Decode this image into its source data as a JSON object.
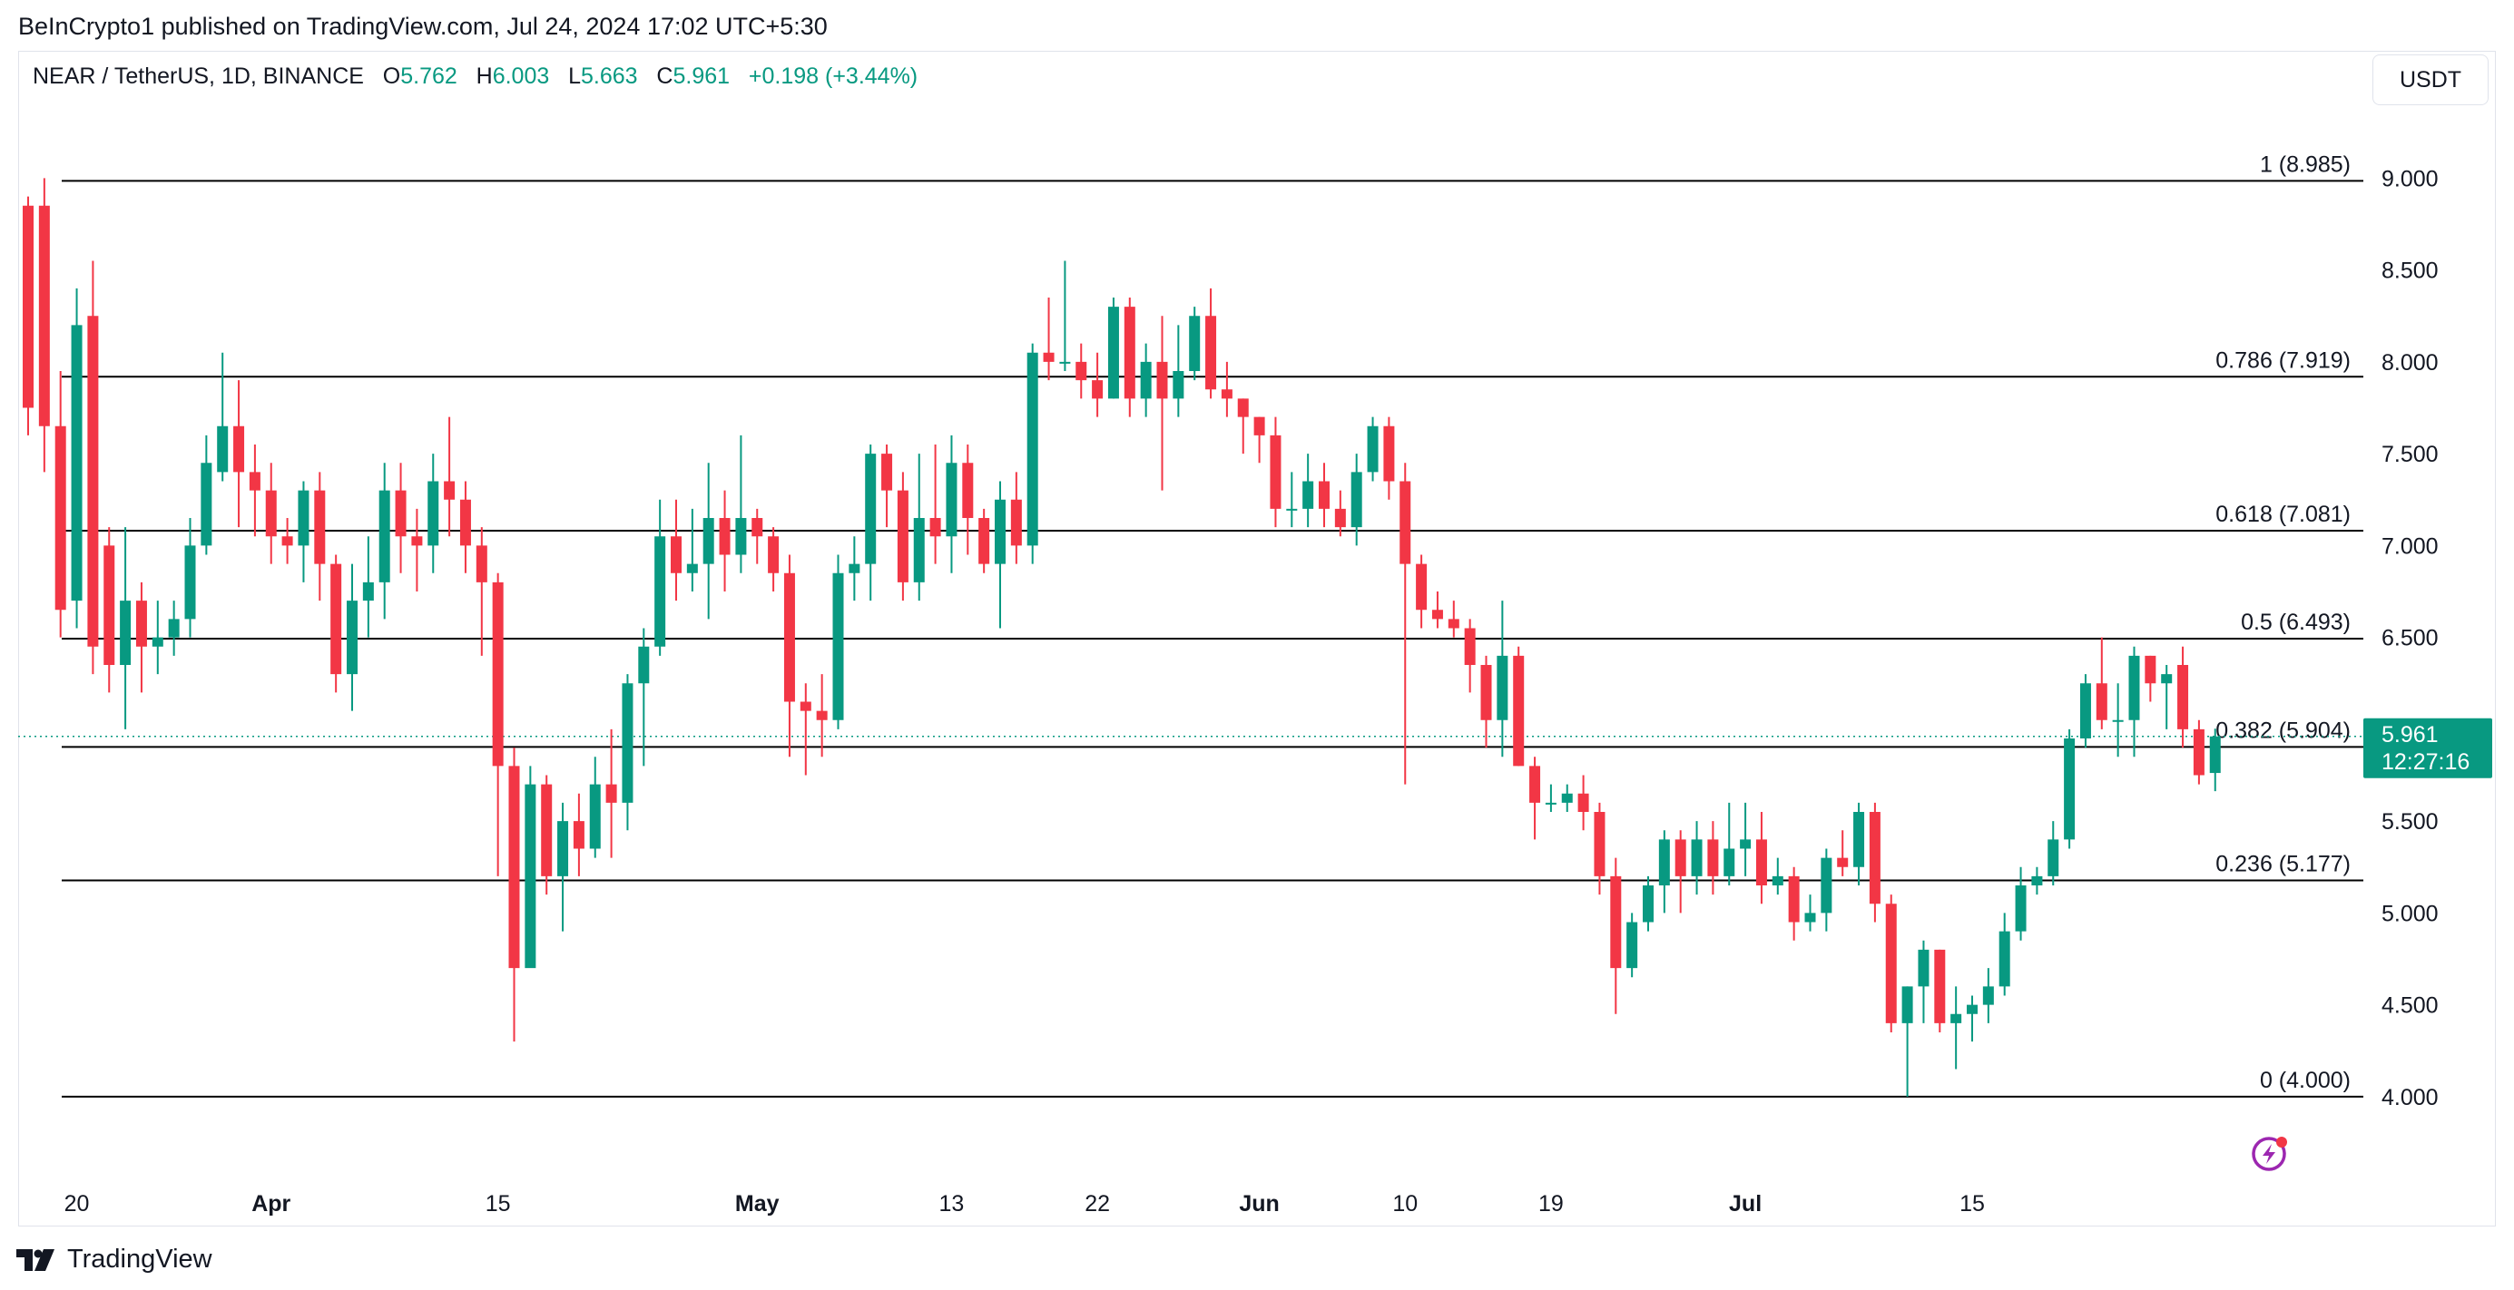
{
  "publisher": "BeInCrypto1 published on TradingView.com, Jul 24, 2024 17:02 UTC+5:30",
  "legend": {
    "symbol": "NEAR / TetherUS, 1D, BINANCE",
    "o_label": "O",
    "o_value": "5.762",
    "h_label": "H",
    "h_value": "6.003",
    "l_label": "L",
    "l_value": "5.663",
    "c_label": "C",
    "c_value": "5.961",
    "change": "+0.198 (+3.44%)"
  },
  "currency_button": "USDT",
  "price_label": {
    "price": "5.961",
    "countdown": "12:27:16"
  },
  "brand": "TradingView",
  "colors": {
    "up": "#089981",
    "down": "#f23645",
    "text": "#131722",
    "grid_line": "#000000"
  },
  "chart_data": {
    "type": "candlestick",
    "title": "NEAR / TetherUS, 1D, BINANCE",
    "ylim": [
      3.55,
      9.55
    ],
    "yticks": [
      4.0,
      4.5,
      5.0,
      5.5,
      6.0,
      6.5,
      7.0,
      7.5,
      8.0,
      8.5,
      9.0
    ],
    "ytick_labels": [
      "4.000",
      "4.500",
      "5.000",
      "5.500",
      "6.000",
      "6.500",
      "7.000",
      "7.500",
      "8.000",
      "8.500",
      "9.000"
    ],
    "current_price": 5.961,
    "xticks": [
      {
        "label": "20",
        "index": 3,
        "bold": false
      },
      {
        "label": "Apr",
        "index": 15,
        "bold": true
      },
      {
        "label": "15",
        "index": 29,
        "bold": false
      },
      {
        "label": "May",
        "index": 45,
        "bold": true
      },
      {
        "label": "13",
        "index": 57,
        "bold": false
      },
      {
        "label": "22",
        "index": 66,
        "bold": false
      },
      {
        "label": "Jun",
        "index": 76,
        "bold": true
      },
      {
        "label": "10",
        "index": 85,
        "bold": false
      },
      {
        "label": "19",
        "index": 94,
        "bold": false
      },
      {
        "label": "Jul",
        "index": 106,
        "bold": true
      },
      {
        "label": "15",
        "index": 120,
        "bold": false
      }
    ],
    "fib_levels": [
      {
        "ratio": "1",
        "value": 8.985,
        "label": "1 (8.985)"
      },
      {
        "ratio": "0.786",
        "value": 7.919,
        "label": "0.786 (7.919)"
      },
      {
        "ratio": "0.618",
        "value": 7.081,
        "label": "0.618 (7.081)"
      },
      {
        "ratio": "0.5",
        "value": 6.493,
        "label": "0.5 (6.493)"
      },
      {
        "ratio": "0.382",
        "value": 5.904,
        "label": "0.382 (5.904)"
      },
      {
        "ratio": "0.236",
        "value": 5.177,
        "label": "0.236 (5.177)"
      },
      {
        "ratio": "0",
        "value": 4.0,
        "label": "0 (4.000)"
      }
    ],
    "candles": [
      [
        8.85,
        7.75,
        8.9,
        7.6
      ],
      [
        8.85,
        7.65,
        9.0,
        7.4
      ],
      [
        7.65,
        6.65,
        7.95,
        6.5
      ],
      [
        6.7,
        8.2,
        8.4,
        6.55
      ],
      [
        8.25,
        6.45,
        8.55,
        6.3
      ],
      [
        7.0,
        6.35,
        7.1,
        6.2
      ],
      [
        6.35,
        6.7,
        7.1,
        6.0
      ],
      [
        6.7,
        6.45,
        6.8,
        6.2
      ],
      [
        6.45,
        6.5,
        6.7,
        6.3
      ],
      [
        6.5,
        6.6,
        6.7,
        6.4
      ],
      [
        6.6,
        7.0,
        7.15,
        6.5
      ],
      [
        7.0,
        7.45,
        7.6,
        6.95
      ],
      [
        7.4,
        7.65,
        8.05,
        7.35
      ],
      [
        7.65,
        7.4,
        7.9,
        7.1
      ],
      [
        7.4,
        7.3,
        7.55,
        7.05
      ],
      [
        7.3,
        7.05,
        7.45,
        6.9
      ],
      [
        7.05,
        7.0,
        7.15,
        6.9
      ],
      [
        7.0,
        7.3,
        7.35,
        6.8
      ],
      [
        7.3,
        6.9,
        7.4,
        6.7
      ],
      [
        6.9,
        6.3,
        6.95,
        6.2
      ],
      [
        6.3,
        6.7,
        6.9,
        6.1
      ],
      [
        6.7,
        6.8,
        7.05,
        6.5
      ],
      [
        6.8,
        7.3,
        7.45,
        6.6
      ],
      [
        7.3,
        7.05,
        7.45,
        6.85
      ],
      [
        7.05,
        7.0,
        7.2,
        6.75
      ],
      [
        7.0,
        7.35,
        7.5,
        6.85
      ],
      [
        7.35,
        7.25,
        7.7,
        7.05
      ],
      [
        7.25,
        7.0,
        7.35,
        6.85
      ],
      [
        7.0,
        6.8,
        7.1,
        6.4
      ],
      [
        6.8,
        5.8,
        6.85,
        5.2
      ],
      [
        5.8,
        4.7,
        5.9,
        4.3
      ],
      [
        4.7,
        5.7,
        5.8,
        4.9
      ],
      [
        5.7,
        5.2,
        5.75,
        5.1
      ],
      [
        5.2,
        5.5,
        5.6,
        4.9
      ],
      [
        5.5,
        5.35,
        5.65,
        5.2
      ],
      [
        5.35,
        5.7,
        5.85,
        5.3
      ],
      [
        5.7,
        5.6,
        6.0,
        5.3
      ],
      [
        5.6,
        6.25,
        6.3,
        5.45
      ],
      [
        6.25,
        6.45,
        6.55,
        5.8
      ],
      [
        6.45,
        7.05,
        7.25,
        6.4
      ],
      [
        7.05,
        6.85,
        7.25,
        6.7
      ],
      [
        6.85,
        6.9,
        7.2,
        6.75
      ],
      [
        6.9,
        7.15,
        7.45,
        6.6
      ],
      [
        7.15,
        6.95,
        7.3,
        6.75
      ],
      [
        6.95,
        7.15,
        7.6,
        6.85
      ],
      [
        7.15,
        7.05,
        7.2,
        6.9
      ],
      [
        7.05,
        6.85,
        7.1,
        6.75
      ],
      [
        6.85,
        6.15,
        6.95,
        5.85
      ],
      [
        6.15,
        6.1,
        6.25,
        5.75
      ],
      [
        6.1,
        6.05,
        6.3,
        5.85
      ],
      [
        6.05,
        6.85,
        6.95,
        6.0
      ],
      [
        6.85,
        6.9,
        7.05,
        6.7
      ],
      [
        6.9,
        7.5,
        7.55,
        6.7
      ],
      [
        7.5,
        7.3,
        7.55,
        7.1
      ],
      [
        7.3,
        6.8,
        7.4,
        6.7
      ],
      [
        6.8,
        7.15,
        7.5,
        6.7
      ],
      [
        7.15,
        7.05,
        7.55,
        6.9
      ],
      [
        7.05,
        7.45,
        7.6,
        6.85
      ],
      [
        7.45,
        7.15,
        7.55,
        6.95
      ],
      [
        7.15,
        6.9,
        7.2,
        6.85
      ],
      [
        6.9,
        7.25,
        7.35,
        6.55
      ],
      [
        7.25,
        7.0,
        7.4,
        6.9
      ],
      [
        7.0,
        8.05,
        8.1,
        6.9
      ],
      [
        8.05,
        8.0,
        8.35,
        7.9
      ],
      [
        8.0,
        8.0,
        8.55,
        7.95
      ],
      [
        8.0,
        7.9,
        8.1,
        7.8
      ],
      [
        7.9,
        7.8,
        8.05,
        7.7
      ],
      [
        7.8,
        8.3,
        8.35,
        7.8
      ],
      [
        8.3,
        7.8,
        8.35,
        7.7
      ],
      [
        7.8,
        8.0,
        8.1,
        7.7
      ],
      [
        8.0,
        7.8,
        8.25,
        7.3
      ],
      [
        7.8,
        7.95,
        8.2,
        7.7
      ],
      [
        7.95,
        8.25,
        8.3,
        7.9
      ],
      [
        8.25,
        7.85,
        8.4,
        7.8
      ],
      [
        7.85,
        7.8,
        8.0,
        7.7
      ],
      [
        7.8,
        7.7,
        7.8,
        7.5
      ],
      [
        7.7,
        7.6,
        7.7,
        7.45
      ],
      [
        7.6,
        7.2,
        7.7,
        7.1
      ],
      [
        7.2,
        7.2,
        7.4,
        7.1
      ],
      [
        7.2,
        7.35,
        7.5,
        7.1
      ],
      [
        7.35,
        7.2,
        7.45,
        7.1
      ],
      [
        7.2,
        7.1,
        7.3,
        7.05
      ],
      [
        7.1,
        7.4,
        7.5,
        7.0
      ],
      [
        7.4,
        7.65,
        7.7,
        7.35
      ],
      [
        7.65,
        7.35,
        7.7,
        7.25
      ],
      [
        7.35,
        6.9,
        7.45,
        5.7
      ],
      [
        6.9,
        6.65,
        6.95,
        6.55
      ],
      [
        6.65,
        6.6,
        6.75,
        6.55
      ],
      [
        6.6,
        6.55,
        6.7,
        6.5
      ],
      [
        6.55,
        6.35,
        6.6,
        6.2
      ],
      [
        6.35,
        6.05,
        6.4,
        5.9
      ],
      [
        6.05,
        6.4,
        6.7,
        5.85
      ],
      [
        6.4,
        5.8,
        6.45,
        5.8
      ],
      [
        5.8,
        5.6,
        5.85,
        5.4
      ],
      [
        5.6,
        5.6,
        5.7,
        5.55
      ],
      [
        5.6,
        5.65,
        5.7,
        5.55
      ],
      [
        5.65,
        5.55,
        5.75,
        5.45
      ],
      [
        5.55,
        5.2,
        5.6,
        5.1
      ],
      [
        5.2,
        4.7,
        5.3,
        4.45
      ],
      [
        4.7,
        4.95,
        5.0,
        4.65
      ],
      [
        4.95,
        5.15,
        5.2,
        4.9
      ],
      [
        5.15,
        5.4,
        5.45,
        5.0
      ],
      [
        5.4,
        5.2,
        5.45,
        5.0
      ],
      [
        5.2,
        5.4,
        5.5,
        5.1
      ],
      [
        5.4,
        5.2,
        5.5,
        5.1
      ],
      [
        5.2,
        5.35,
        5.6,
        5.15
      ],
      [
        5.35,
        5.4,
        5.6,
        5.2
      ],
      [
        5.4,
        5.15,
        5.55,
        5.05
      ],
      [
        5.15,
        5.2,
        5.3,
        5.1
      ],
      [
        5.2,
        4.95,
        5.25,
        4.85
      ],
      [
        4.95,
        5.0,
        5.1,
        4.9
      ],
      [
        5.0,
        5.3,
        5.35,
        4.9
      ],
      [
        5.3,
        5.25,
        5.45,
        5.2
      ],
      [
        5.25,
        5.55,
        5.6,
        5.15
      ],
      [
        5.55,
        5.05,
        5.6,
        4.95
      ],
      [
        5.05,
        4.4,
        5.1,
        4.35
      ],
      [
        4.4,
        4.6,
        4.6,
        4.0
      ],
      [
        4.6,
        4.8,
        4.85,
        4.4
      ],
      [
        4.8,
        4.4,
        4.8,
        4.35
      ],
      [
        4.4,
        4.45,
        4.6,
        4.15
      ],
      [
        4.45,
        4.5,
        4.55,
        4.3
      ],
      [
        4.5,
        4.6,
        4.7,
        4.4
      ],
      [
        4.6,
        4.9,
        5.0,
        4.55
      ],
      [
        4.9,
        5.15,
        5.25,
        4.85
      ],
      [
        5.15,
        5.2,
        5.25,
        5.1
      ],
      [
        5.2,
        5.4,
        5.5,
        5.15
      ],
      [
        5.4,
        5.95,
        6.0,
        5.35
      ],
      [
        5.95,
        6.25,
        6.3,
        5.9
      ],
      [
        6.25,
        6.05,
        6.5,
        6.0
      ],
      [
        6.05,
        6.05,
        6.25,
        5.85
      ],
      [
        6.05,
        6.4,
        6.45,
        5.85
      ],
      [
        6.4,
        6.25,
        6.4,
        6.15
      ],
      [
        6.25,
        6.3,
        6.35,
        6.0
      ],
      [
        6.35,
        6.0,
        6.45,
        5.9
      ],
      [
        6.0,
        5.75,
        6.05,
        5.7
      ],
      [
        5.762,
        5.961,
        6.003,
        5.663
      ]
    ]
  }
}
